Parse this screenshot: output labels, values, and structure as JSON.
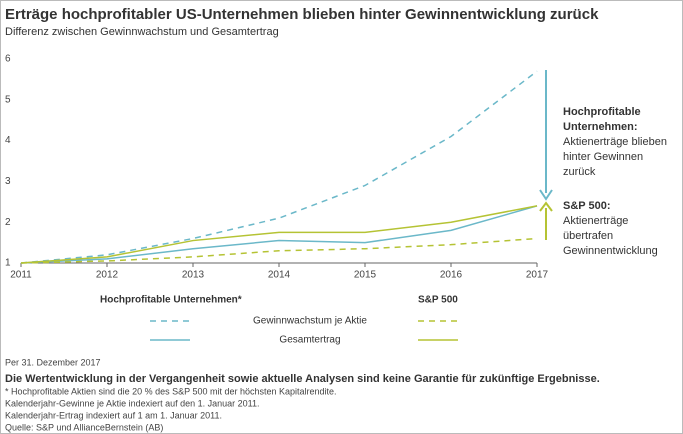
{
  "chart_data": {
    "type": "line",
    "title": "Erträge hochprofitabler US-Unternehmen blieben hinter Gewinnentwicklung zurück",
    "subtitle": "Differenz zwischen Gewinnwachstum und Gesamtertrag",
    "x": [
      2011,
      2012,
      2013,
      2014,
      2015,
      2016,
      2017
    ],
    "xlim": [
      2011,
      2017
    ],
    "xticks": [
      2011,
      2012,
      2013,
      2014,
      2015,
      2016,
      2017
    ],
    "ylim": [
      1,
      6
    ],
    "yticks": [
      1,
      2,
      3,
      4,
      5,
      6
    ],
    "legend_rows": [
      "Gewinnwachstum je Aktie",
      "Gesamtertrag"
    ],
    "groups": [
      {
        "name": "Hochprofitable Unternehmen*",
        "color": "#6bb8c9",
        "lines": [
          {
            "dashed": true,
            "values": [
              1,
              1.2,
              1.6,
              2.1,
              2.9,
              4.1,
              5.7
            ]
          },
          {
            "dashed": false,
            "values": [
              1,
              1.1,
              1.35,
              1.55,
              1.5,
              1.8,
              2.4
            ]
          }
        ]
      },
      {
        "name": "S&P 500",
        "color": "#b5c334",
        "lines": [
          {
            "dashed": true,
            "values": [
              1,
              1.05,
              1.15,
              1.3,
              1.35,
              1.45,
              1.6
            ]
          },
          {
            "dashed": false,
            "values": [
              1,
              1.15,
              1.55,
              1.75,
              1.75,
              2.0,
              2.4
            ]
          }
        ]
      }
    ],
    "annotations": [
      {
        "title": [
          "Hochprofitable",
          "Unternehmen:"
        ],
        "text": [
          "Aktienerträge blieben",
          "hinter Gewinnen",
          "zurück"
        ]
      },
      {
        "title": [
          "S&P 500:"
        ],
        "text": [
          "Aktienerträge",
          "übertrafen",
          "Gewinnentwicklung"
        ]
      }
    ]
  },
  "footer": {
    "date": "Per 31. Dezember 2017",
    "disclaimer": "Die Wertentwicklung in der Vergangenheit sowie aktuelle Analysen sind keine Garantie für zukünftige Ergebnisse.",
    "notes": [
      "* Hochprofitable Aktien sind die 20 % des S&P 500 mit der höchsten Kapitalrendite.",
      "Kalenderjahr-Gewinne je Aktie indexiert auf den 1. Januar 2011.",
      "Kalenderjahr-Ertrag indexiert auf 1 am 1. Januar 2011.",
      "Quelle: S&P und AllianceBernstein (AB)"
    ]
  }
}
